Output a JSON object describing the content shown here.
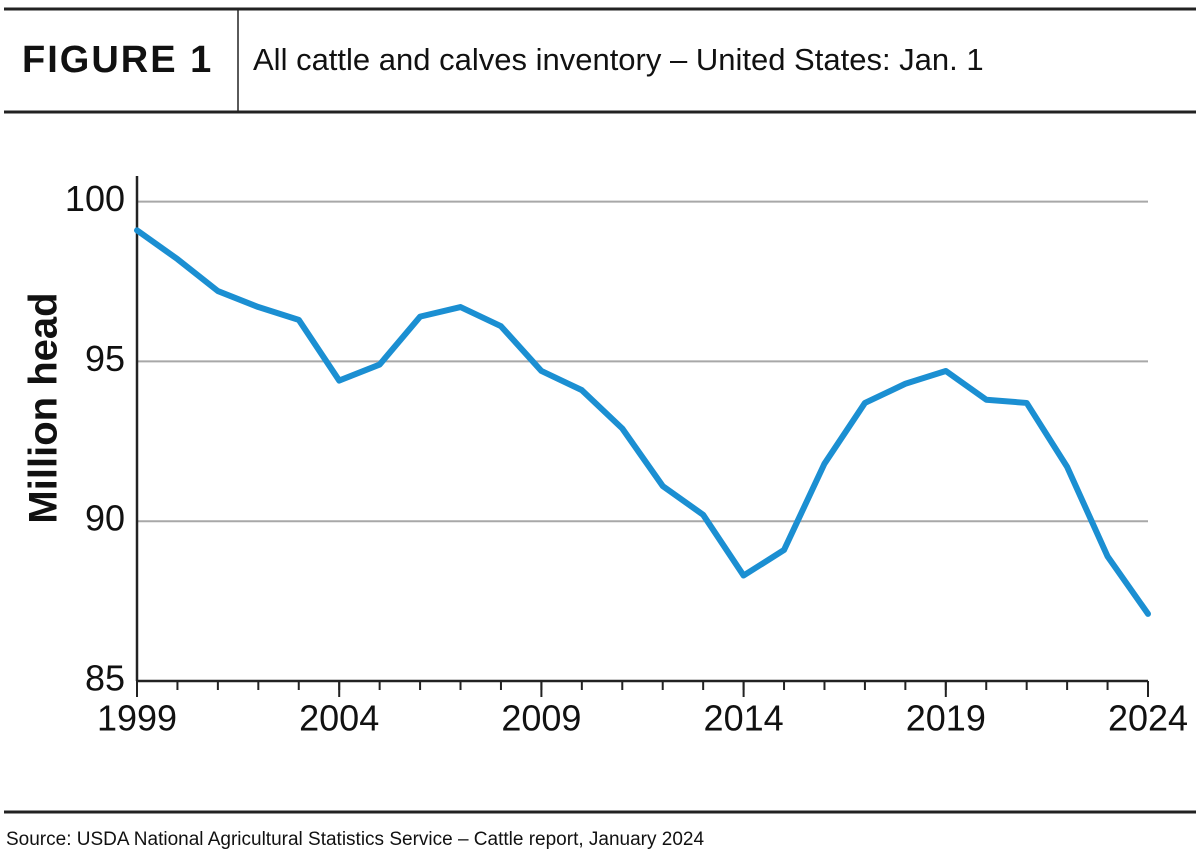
{
  "chart_data": {
    "type": "line",
    "figure_label": "FIGURE 1",
    "title": "All cattle and calves inventory – United States: Jan. 1",
    "y_label": "Million head",
    "source": "Source: USDA National Agricultural Statistics Service – Cattle report, January 2024",
    "x": [
      1999,
      2000,
      2001,
      2002,
      2003,
      2004,
      2005,
      2006,
      2007,
      2008,
      2009,
      2010,
      2011,
      2012,
      2013,
      2014,
      2015,
      2016,
      2017,
      2018,
      2019,
      2020,
      2021,
      2022,
      2023,
      2024
    ],
    "values": [
      99.1,
      98.2,
      97.2,
      96.7,
      96.3,
      94.4,
      94.9,
      96.4,
      96.7,
      96.1,
      94.7,
      94.1,
      92.9,
      91.1,
      90.2,
      88.3,
      89.1,
      91.8,
      93.7,
      94.3,
      94.7,
      93.8,
      93.7,
      91.7,
      88.9,
      87.1
    ],
    "color": "#1b8fd2",
    "xlim": [
      1999,
      2024
    ],
    "xticks": [
      1999,
      2004,
      2009,
      2014,
      2019,
      2024
    ],
    "ylim": [
      85,
      100.8
    ],
    "yticks": [
      85,
      90,
      95,
      100
    ],
    "grid": true
  }
}
